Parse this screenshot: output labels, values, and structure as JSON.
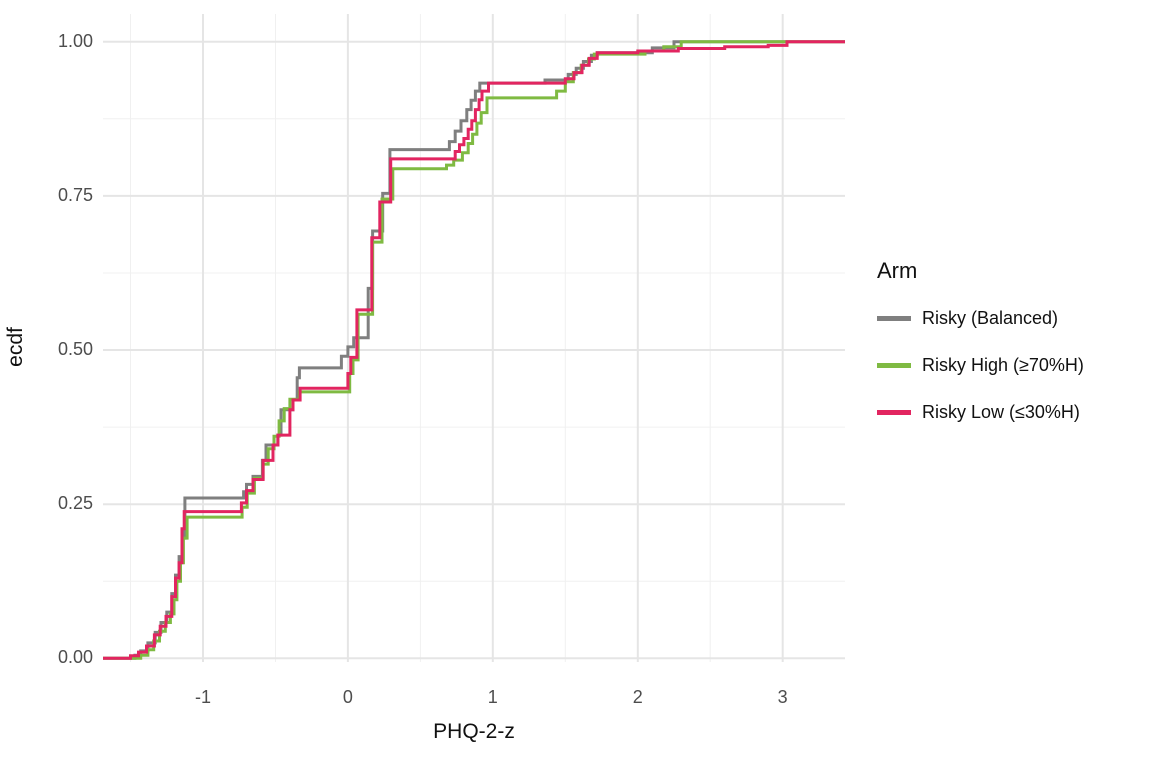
{
  "chart_data": {
    "type": "line",
    "variant": "ecdf-step",
    "title": "",
    "xlabel": "PHQ-2-z",
    "ylabel": "ecdf",
    "legend_title": "Arm",
    "legend_position": "right",
    "grid": true,
    "xlim": [
      -1.69,
      3.43
    ],
    "ylim": [
      -0.006,
      1.045
    ],
    "xticks": [
      -1,
      0,
      1,
      2,
      3
    ],
    "xtick_labels": [
      "-1",
      "0",
      "1",
      "2",
      "3"
    ],
    "x_minor_ticks": [
      -1.5,
      -0.5,
      0.5,
      1.5,
      2.5
    ],
    "yticks": [
      0,
      0.25,
      0.5,
      0.75,
      1
    ],
    "ytick_labels": [
      "0.00",
      "0.25",
      "0.50",
      "0.75",
      "1.00"
    ],
    "y_minor_ticks": [
      0.125,
      0.375,
      0.625,
      0.875
    ],
    "style": {
      "background": "#FFFFFF",
      "grid_major_color": "#E5E5E5",
      "grid_minor_color": "#F0F0F0",
      "tick_label_color": "#4D4D4D",
      "text_color": "#111111",
      "line_width": 3
    },
    "series": [
      {
        "name": "Risky (Balanced)",
        "color": "#7F7F7F",
        "points": [
          [
            -1.47,
            0.005
          ],
          [
            -1.43,
            0.012
          ],
          [
            -1.38,
            0.025
          ],
          [
            -1.33,
            0.042
          ],
          [
            -1.29,
            0.058
          ],
          [
            -1.25,
            0.075
          ],
          [
            -1.215,
            0.105
          ],
          [
            -1.19,
            0.135
          ],
          [
            -1.165,
            0.165
          ],
          [
            -1.145,
            0.195
          ],
          [
            -1.125,
            0.26
          ],
          [
            -0.72,
            0.27
          ],
          [
            -0.7,
            0.282
          ],
          [
            -0.655,
            0.295
          ],
          [
            -0.59,
            0.321
          ],
          [
            -0.565,
            0.346
          ],
          [
            -0.483,
            0.362
          ],
          [
            -0.462,
            0.403
          ],
          [
            -0.379,
            0.419
          ],
          [
            -0.35,
            0.455
          ],
          [
            -0.335,
            0.471
          ],
          [
            -0.045,
            0.49
          ],
          [
            0.0,
            0.505
          ],
          [
            0.04,
            0.52
          ],
          [
            0.14,
            0.6
          ],
          [
            0.17,
            0.693
          ],
          [
            0.24,
            0.754
          ],
          [
            0.29,
            0.825
          ],
          [
            0.7,
            0.838
          ],
          [
            0.74,
            0.855
          ],
          [
            0.78,
            0.872
          ],
          [
            0.82,
            0.89
          ],
          [
            0.85,
            0.905
          ],
          [
            0.88,
            0.92
          ],
          [
            0.91,
            0.933
          ],
          [
            1.36,
            0.938
          ],
          [
            1.52,
            0.947
          ],
          [
            1.575,
            0.957
          ],
          [
            1.625,
            0.968
          ],
          [
            1.68,
            0.978
          ],
          [
            1.72,
            0.982
          ],
          [
            2.1,
            0.99
          ],
          [
            2.25,
            1.0
          ]
        ]
      },
      {
        "name": "Risky High (≥70%H)",
        "color": "#7FBA42",
        "points": [
          [
            -1.43,
            0.005
          ],
          [
            -1.38,
            0.014
          ],
          [
            -1.34,
            0.028
          ],
          [
            -1.3,
            0.044
          ],
          [
            -1.26,
            0.058
          ],
          [
            -1.225,
            0.072
          ],
          [
            -1.2,
            0.095
          ],
          [
            -1.18,
            0.125
          ],
          [
            -1.155,
            0.155
          ],
          [
            -1.135,
            0.195
          ],
          [
            -1.11,
            0.229
          ],
          [
            -0.73,
            0.245
          ],
          [
            -0.695,
            0.268
          ],
          [
            -0.645,
            0.292
          ],
          [
            -0.585,
            0.315
          ],
          [
            -0.55,
            0.34
          ],
          [
            -0.51,
            0.36
          ],
          [
            -0.475,
            0.385
          ],
          [
            -0.44,
            0.405
          ],
          [
            -0.4,
            0.42
          ],
          [
            -0.335,
            0.432
          ],
          [
            0.012,
            0.462
          ],
          [
            0.035,
            0.484
          ],
          [
            0.07,
            0.558
          ],
          [
            0.17,
            0.675
          ],
          [
            0.235,
            0.745
          ],
          [
            0.31,
            0.794
          ],
          [
            0.68,
            0.8
          ],
          [
            0.73,
            0.808
          ],
          [
            0.79,
            0.82
          ],
          [
            0.83,
            0.835
          ],
          [
            0.86,
            0.85
          ],
          [
            0.89,
            0.868
          ],
          [
            0.92,
            0.885
          ],
          [
            0.96,
            0.909
          ],
          [
            1.44,
            0.92
          ],
          [
            1.5,
            0.935
          ],
          [
            1.555,
            0.95
          ],
          [
            1.61,
            0.962
          ],
          [
            1.66,
            0.972
          ],
          [
            1.7,
            0.98
          ],
          [
            2.05,
            0.985
          ],
          [
            2.18,
            0.992
          ],
          [
            2.3,
            1.0
          ]
        ]
      },
      {
        "name": "Risky Low (≤30%H)",
        "color": "#E22560",
        "points": [
          [
            -1.5,
            0.004
          ],
          [
            -1.445,
            0.01
          ],
          [
            -1.39,
            0.02
          ],
          [
            -1.335,
            0.038
          ],
          [
            -1.295,
            0.052
          ],
          [
            -1.255,
            0.068
          ],
          [
            -1.215,
            0.1
          ],
          [
            -1.19,
            0.13
          ],
          [
            -1.165,
            0.155
          ],
          [
            -1.145,
            0.21
          ],
          [
            -1.13,
            0.238
          ],
          [
            -0.735,
            0.252
          ],
          [
            -0.7,
            0.272
          ],
          [
            -0.655,
            0.29
          ],
          [
            -0.585,
            0.321
          ],
          [
            -0.517,
            0.346
          ],
          [
            -0.483,
            0.362
          ],
          [
            -0.4,
            0.403
          ],
          [
            -0.379,
            0.419
          ],
          [
            -0.33,
            0.438
          ],
          [
            0.0,
            0.462
          ],
          [
            0.02,
            0.488
          ],
          [
            0.062,
            0.565
          ],
          [
            0.165,
            0.682
          ],
          [
            0.22,
            0.74
          ],
          [
            0.295,
            0.81
          ],
          [
            0.74,
            0.822
          ],
          [
            0.77,
            0.833
          ],
          [
            0.8,
            0.843
          ],
          [
            0.83,
            0.858
          ],
          [
            0.855,
            0.872
          ],
          [
            0.88,
            0.89
          ],
          [
            0.905,
            0.906
          ],
          [
            0.925,
            0.92
          ],
          [
            0.97,
            0.933
          ],
          [
            1.5,
            0.94
          ],
          [
            1.56,
            0.95
          ],
          [
            1.615,
            0.962
          ],
          [
            1.665,
            0.973
          ],
          [
            1.72,
            0.982
          ],
          [
            2.0,
            0.985
          ],
          [
            2.28,
            0.989
          ],
          [
            2.6,
            0.992
          ],
          [
            2.9,
            0.994
          ],
          [
            3.03,
            1.0
          ]
        ]
      }
    ]
  }
}
